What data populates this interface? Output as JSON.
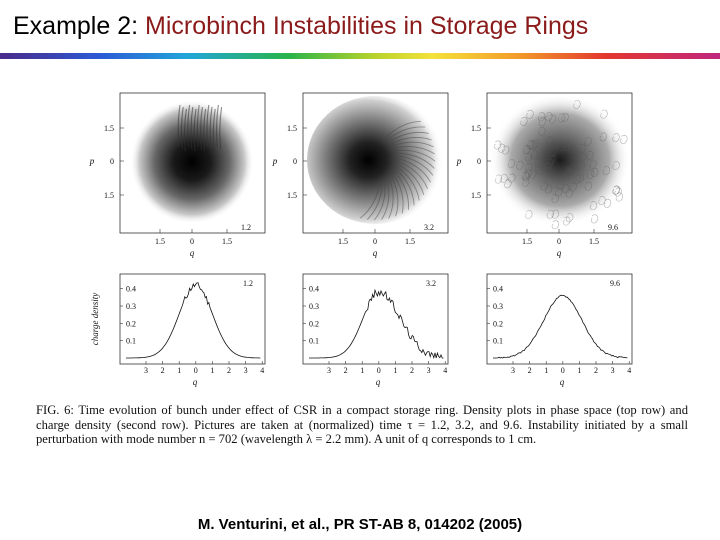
{
  "slide": {
    "title_prefix": "Example 2: ",
    "title_accent": "Microbinch Instabilities in Storage Rings",
    "citation": "M. Venturini, et al., PR ST-AB 8, 014202 (2005)"
  },
  "figure": {
    "caption": "FIG. 6: Time evolution of bunch under effect of CSR in a compact storage ring. Density plots in phase space (top row) and charge density (second row). Pictures are taken at (normalized) time τ = 1.2, 3.2, and 9.6. Instability initiated by a small perturbation with mode number n = 702 (wavelength λ = 2.2 mm). A unit of q corresponds to 1 cm.",
    "phase_space": {
      "xlabel": "q",
      "ylabel": "p",
      "x_ticks": [
        "1.5",
        "0",
        "1.5"
      ],
      "y_ticks": [
        "1.5",
        "0",
        "1.5"
      ],
      "panels": [
        {
          "time_label": "1.2"
        },
        {
          "time_label": "3.2"
        },
        {
          "time_label": "9.6"
        }
      ]
    },
    "charge_density": {
      "xlabel": "q",
      "ylabel": "charge density",
      "x_ticks": [
        "3",
        "2",
        "1",
        "0",
        "1",
        "2",
        "3",
        "4"
      ],
      "y_ticks": [
        "0.4",
        "0.3",
        "0.2",
        "0.1"
      ],
      "panels": [
        {
          "time_label": "1.2"
        },
        {
          "time_label": "3.2"
        },
        {
          "time_label": "9.6"
        }
      ]
    }
  }
}
